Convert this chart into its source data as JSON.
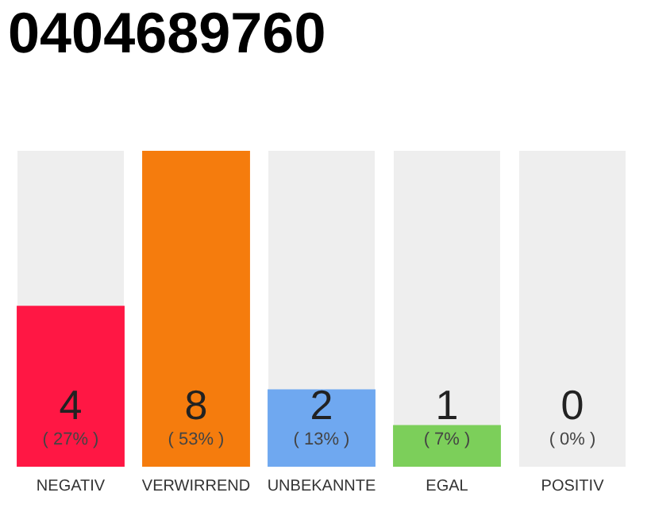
{
  "chart_data": {
    "type": "bar",
    "title": "0404689760",
    "categories": [
      "NEGATIV",
      "VERWIRREND",
      "UNBEKANNTE",
      "EGAL",
      "POSITIV"
    ],
    "values": [
      27,
      53,
      13,
      7,
      0
    ],
    "colors": [
      "#ff1744",
      "#f57c0d",
      "#6fa8f0",
      "#7ccf5a",
      "#cccccc"
    ],
    "value_labels": [
      "( 27% )",
      "( 53% )",
      "( 13% )",
      "( 7% )",
      "( 0% )"
    ],
    "annotations": [
      "4",
      "8",
      "2",
      "1",
      "0"
    ],
    "grid": false,
    "legend": false
  }
}
